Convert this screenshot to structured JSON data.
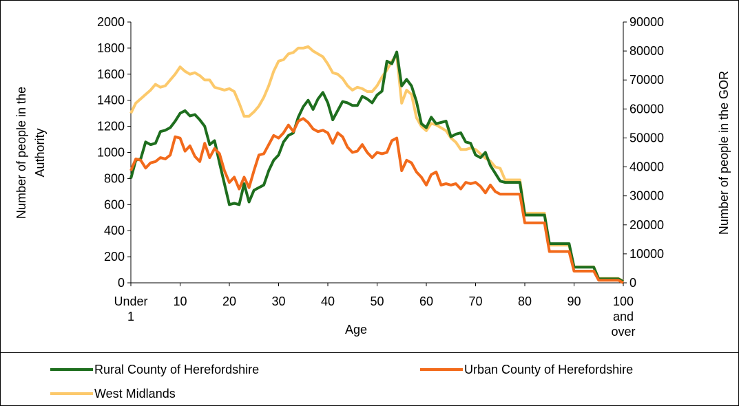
{
  "chart_data": {
    "type": "line",
    "xlabel": "Age",
    "ylabel": "Number of people in the Authority",
    "y2label": "Number of people in the GOR",
    "categories": [
      "Under 1",
      null,
      null,
      null,
      null,
      null,
      null,
      null,
      null,
      null,
      "10",
      null,
      null,
      null,
      null,
      null,
      null,
      null,
      null,
      null,
      "20",
      null,
      null,
      null,
      null,
      null,
      null,
      null,
      null,
      null,
      "30",
      null,
      null,
      null,
      null,
      null,
      null,
      null,
      null,
      null,
      "40",
      null,
      null,
      null,
      null,
      null,
      null,
      null,
      null,
      null,
      "50",
      null,
      null,
      null,
      null,
      null,
      null,
      null,
      null,
      null,
      "60",
      null,
      null,
      null,
      null,
      null,
      null,
      null,
      null,
      null,
      "70",
      null,
      null,
      null,
      null,
      null,
      null,
      null,
      null,
      null,
      "80",
      null,
      null,
      null,
      null,
      null,
      null,
      null,
      null,
      null,
      "90",
      null,
      null,
      null,
      null,
      null,
      null,
      null,
      null,
      null,
      "100 and over"
    ],
    "ylim": [
      0,
      2000
    ],
    "yticks": [
      0,
      200,
      400,
      600,
      800,
      1000,
      1200,
      1400,
      1600,
      1800,
      2000
    ],
    "y2lim": [
      0,
      90000
    ],
    "y2ticks": [
      0,
      10000,
      20000,
      30000,
      40000,
      50000,
      60000,
      70000,
      80000,
      90000
    ],
    "legend": "bottom",
    "series": [
      {
        "name": "Rural County of Herefordshire",
        "color": "#1e6e1e",
        "values": [
          800,
          940,
          950,
          1080,
          1060,
          1070,
          1160,
          1170,
          1190,
          1240,
          1300,
          1320,
          1280,
          1290,
          1250,
          1200,
          1060,
          1090,
          920,
          760,
          600,
          610,
          600,
          760,
          620,
          710,
          730,
          750,
          860,
          940,
          980,
          1080,
          1130,
          1150,
          1270,
          1350,
          1400,
          1330,
          1410,
          1460,
          1380,
          1250,
          1320,
          1390,
          1380,
          1360,
          1360,
          1430,
          1410,
          1380,
          1440,
          1470,
          1700,
          1680,
          1770,
          1510,
          1560,
          1510,
          1390,
          1220,
          1190,
          1270,
          1220,
          1230,
          1240,
          1120,
          1140,
          1150,
          1080,
          1070,
          980,
          960,
          1000,
          900,
          840,
          780,
          770,
          770,
          770,
          770,
          520,
          520,
          520,
          520,
          520,
          300,
          300,
          300,
          300,
          300,
          120,
          120,
          120,
          120,
          120,
          30,
          30,
          30,
          30,
          30,
          10
        ]
      },
      {
        "name": "Urban County of Herefordshire",
        "color": "#f26a1b",
        "values": [
          860,
          950,
          940,
          880,
          920,
          930,
          960,
          950,
          980,
          1120,
          1110,
          1010,
          1050,
          970,
          930,
          1070,
          960,
          1030,
          990,
          860,
          770,
          810,
          720,
          810,
          730,
          860,
          980,
          990,
          1060,
          1130,
          1110,
          1150,
          1210,
          1160,
          1240,
          1260,
          1230,
          1180,
          1160,
          1170,
          1150,
          1070,
          1150,
          1120,
          1040,
          1000,
          1010,
          1060,
          1000,
          960,
          1000,
          990,
          1000,
          1090,
          1110,
          860,
          940,
          920,
          850,
          810,
          750,
          830,
          850,
          750,
          760,
          750,
          760,
          720,
          770,
          760,
          770,
          740,
          690,
          750,
          700,
          680,
          680,
          680,
          680,
          680,
          460,
          460,
          460,
          460,
          460,
          240,
          240,
          240,
          240,
          240,
          90,
          90,
          90,
          90,
          90,
          20,
          20,
          20,
          20,
          20,
          0
        ]
      },
      {
        "name": "West Midlands",
        "color": "#fcc96b",
        "axis": "y2",
        "values": [
          58500,
          62000,
          63500,
          65000,
          66500,
          68500,
          67500,
          68000,
          70000,
          72000,
          74500,
          73000,
          72000,
          72500,
          71500,
          70000,
          70000,
          67500,
          67000,
          66500,
          67000,
          66000,
          62000,
          57500,
          57500,
          59000,
          61000,
          64000,
          68000,
          73000,
          76500,
          77000,
          79000,
          79500,
          81000,
          81000,
          81500,
          80000,
          79000,
          78000,
          75500,
          72500,
          72000,
          70500,
          68000,
          66500,
          67500,
          67000,
          66000,
          66000,
          68000,
          71000,
          73500,
          76500,
          78500,
          62000,
          66500,
          65000,
          57000,
          54000,
          52500,
          55000,
          54500,
          53500,
          52500,
          50000,
          48500,
          46000,
          46000,
          46500,
          46000,
          44500,
          43000,
          42000,
          40000,
          39500,
          35500,
          35500,
          35500,
          35500,
          24000,
          24000,
          24000,
          24000,
          24000,
          13000,
          13000,
          13000,
          13000,
          13000,
          5500,
          5500,
          5500,
          5500,
          5500,
          1500,
          1500,
          1500,
          1500,
          1500,
          500
        ]
      }
    ]
  }
}
